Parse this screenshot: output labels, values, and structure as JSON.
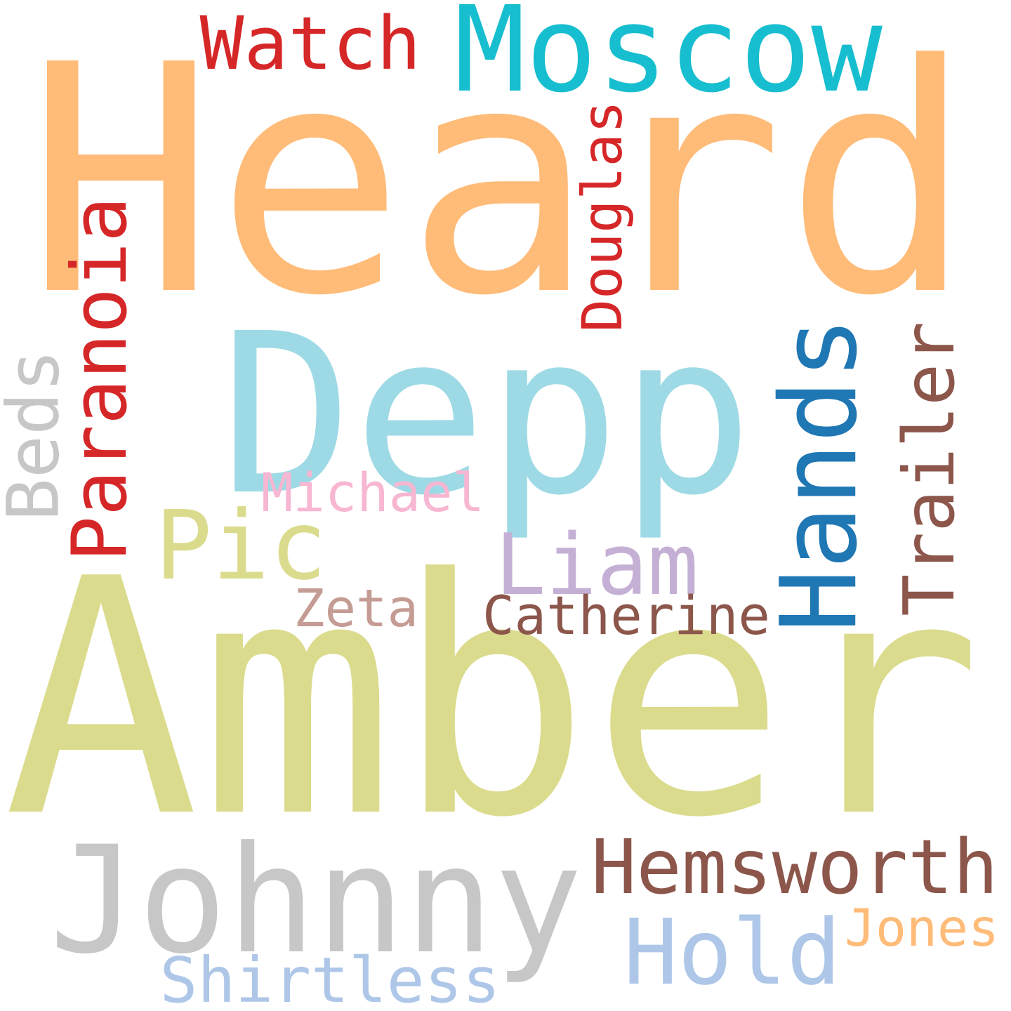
{
  "words": [
    {
      "text": "Heard",
      "color": "#ffbb78"
    },
    {
      "text": "Amber",
      "color": "#dbdb8d"
    },
    {
      "text": "Depp",
      "color": "#9edae5"
    },
    {
      "text": "Johnny",
      "color": "#c7c7c7"
    },
    {
      "text": "Moscow",
      "color": "#17becf"
    },
    {
      "text": "Hands",
      "color": "#1f77b4"
    },
    {
      "text": "Paranoia",
      "color": "#d62728"
    },
    {
      "text": "Liam",
      "color": "#c5b0d5"
    },
    {
      "text": "Pic",
      "color": "#dbdb8d"
    },
    {
      "text": "Trailer",
      "color": "#8c564b"
    },
    {
      "text": "Hemsworth",
      "color": "#8c564b"
    },
    {
      "text": "Hold",
      "color": "#aec7e8"
    },
    {
      "text": "Watch",
      "color": "#d62728"
    },
    {
      "text": "Beds",
      "color": "#c7c7c7"
    },
    {
      "text": "Douglas",
      "color": "#d62728"
    },
    {
      "text": "Catherine",
      "color": "#8c564b"
    },
    {
      "text": "Shirtless",
      "color": "#aec7e8"
    },
    {
      "text": "Michael",
      "color": "#f7b6d2"
    },
    {
      "text": "Zeta",
      "color": "#c49c94"
    },
    {
      "text": "Jones",
      "color": "#ffbb78"
    }
  ]
}
